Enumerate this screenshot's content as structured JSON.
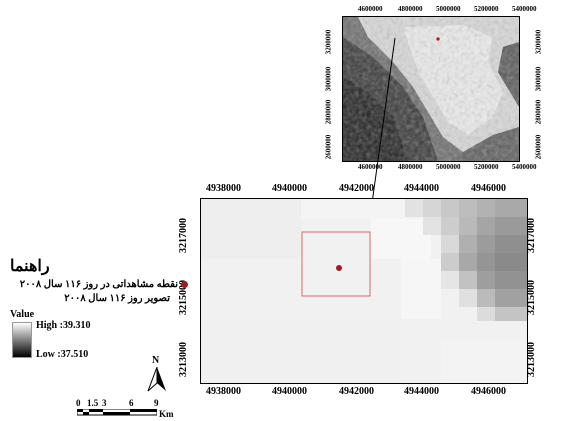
{
  "inset_map": {
    "x_ticks": [
      "4600000",
      "4800000",
      "5000000",
      "5200000",
      "5400000"
    ],
    "y_ticks": [
      "3200000",
      "3000000",
      "2800000",
      "2600000"
    ]
  },
  "main_map": {
    "x_ticks": [
      "4938000",
      "4940000",
      "4942000",
      "4944000",
      "4946000"
    ],
    "y_ticks": [
      "3217000",
      "3215000",
      "3213000"
    ]
  },
  "legend": {
    "title": "راهنما",
    "point_label": "نقطه مشاهداتی در روز ۱۱۶ سال ۲۰۰۸",
    "image_label": "تصویر روز ۱۱۶ سال ۲۰۰۸",
    "value_heading": "Value",
    "high_label": "High :39.310",
    "low_label": "Low :37.510",
    "colors": {
      "point": "#a01c1c",
      "high": "#ffffff",
      "low": "#000000"
    }
  },
  "north_arrow": {
    "label": "N"
  },
  "scale_bar": {
    "labels": [
      "0",
      "1.5",
      "3",
      "6",
      "9"
    ],
    "unit": "Km"
  }
}
